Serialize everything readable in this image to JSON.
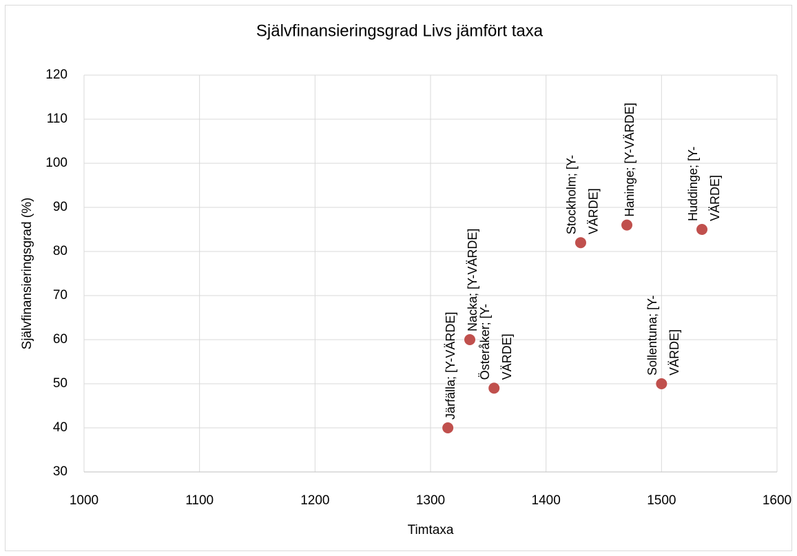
{
  "chart_data": {
    "type": "scatter",
    "title": "Självfinansieringsgrad Livs jämfört taxa",
    "x_label": "Timtaxa",
    "y_label": "Självfinansieringsgrad (%)",
    "x": [
      1315,
      1334,
      1355,
      1430,
      1470,
      1500,
      1535
    ],
    "values": [
      40,
      60,
      49,
      82,
      86,
      50,
      85
    ],
    "value_labels": [
      [
        "Järfälla; [Y-VÄRDE]"
      ],
      [
        "Nacka; [Y-VÄRDE]"
      ],
      [
        "Österåker; [Y-",
        "VÄRDE]"
      ],
      [
        "Stockholm; [Y-",
        "VÄRDE]"
      ],
      [
        "Haninge; [Y-VÄRDE]"
      ],
      [
        "Sollentuna; [Y-",
        "VÄRDE]"
      ],
      [
        "Huddinge; [Y-",
        "VÄRDE]"
      ]
    ],
    "color": "#c0504d",
    "xlim": [
      1000,
      1600
    ],
    "xticks": [
      1000,
      1100,
      1200,
      1300,
      1400,
      1500,
      1600
    ],
    "ylim": [
      30,
      120
    ],
    "yticks": [
      30,
      40,
      50,
      60,
      70,
      80,
      90,
      100,
      110,
      120
    ],
    "grid": true
  }
}
